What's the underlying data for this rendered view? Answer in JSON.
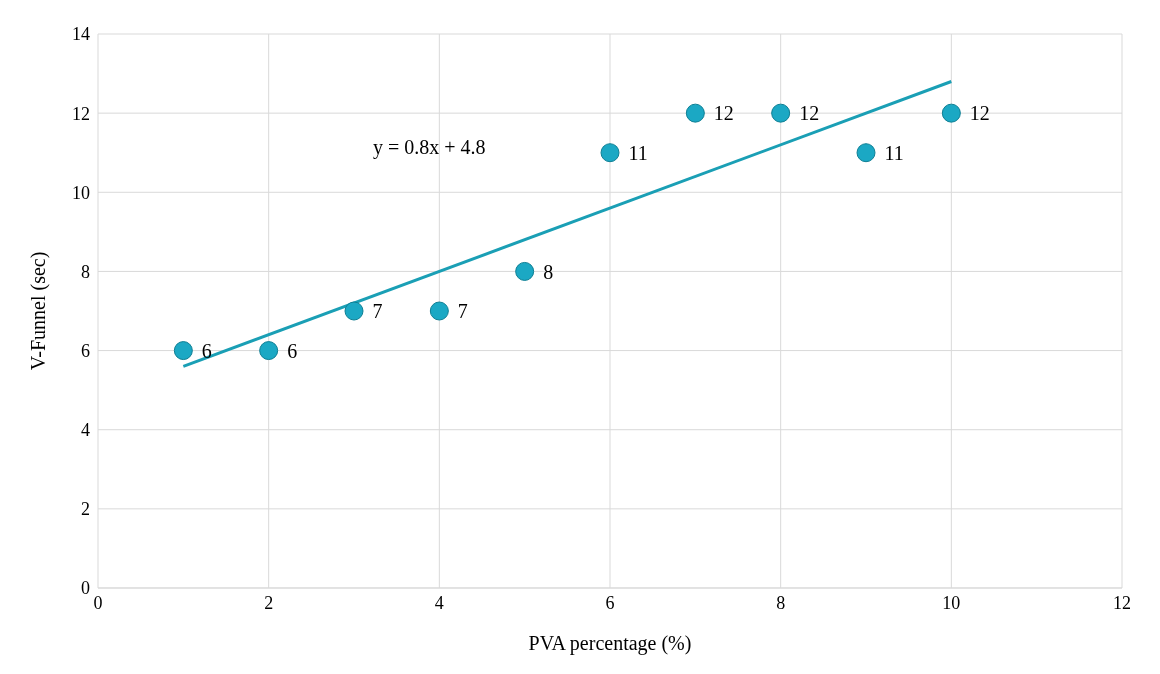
{
  "chart_data": {
    "type": "scatter",
    "xlabel": "PVA percentage (%)",
    "ylabel": "V-Funnel (sec)",
    "x": [
      1,
      2,
      3,
      4,
      5,
      6,
      7,
      8,
      9,
      10
    ],
    "series": [
      {
        "color": "#1ba8c4",
        "values": [
          6,
          6,
          7,
          7,
          8,
          11,
          12,
          12,
          11,
          12
        ],
        "value_labels": [
          "6",
          "6",
          "7",
          "7",
          "8",
          "11",
          "12",
          "12",
          "11",
          "12"
        ],
        "marker": "circle"
      },
      {
        "type": "line",
        "color": "#1a9fb5",
        "x": [
          1,
          10
        ],
        "values": [
          5.6,
          12.8
        ],
        "marker": "none"
      }
    ],
    "annotations": [
      "y = 0.8x + 4.8"
    ],
    "xlim": [
      0,
      12
    ],
    "xticks": [
      0,
      2,
      4,
      6,
      8,
      10,
      12
    ],
    "ylim": [
      0,
      14
    ],
    "yticks": [
      0,
      2,
      4,
      6,
      8,
      10,
      12,
      14
    ],
    "grid": true,
    "legend": false
  }
}
